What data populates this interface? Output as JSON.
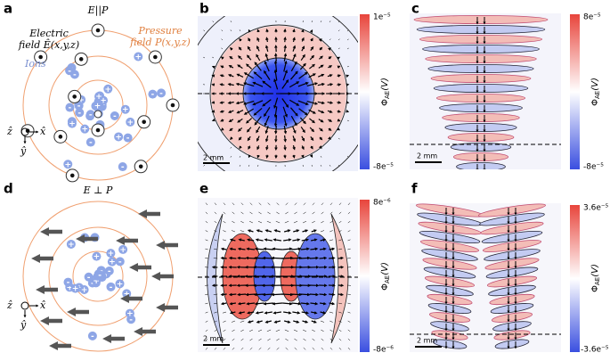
{
  "panels": {
    "a": {
      "label": "a",
      "title": "E||P",
      "electric": [
        "Electric",
        "field Ê(x,y,z)"
      ],
      "pressure": [
        "Pressure",
        "field P(x,y,z)"
      ],
      "ions": "Ions",
      "axes": [
        "ẑ",
        "x̂",
        "ŷ"
      ]
    },
    "b": {
      "label": "b",
      "cbar_top": "1e⁻⁵",
      "cbar_bottom": "-8e⁻⁵",
      "scale": "2 mm"
    },
    "c": {
      "label": "c",
      "cbar_top": "8e⁻⁵",
      "cbar_bottom": "-8e⁻⁵",
      "scale": "2 mm"
    },
    "d": {
      "label": "d",
      "title": "E ⊥ P",
      "axes": [
        "ẑ",
        "x̂",
        "ŷ"
      ]
    },
    "e": {
      "label": "e",
      "cbar_top": "8e⁻⁶",
      "cbar_bottom": "-8e⁻⁶",
      "scale": "2 mm"
    },
    "f": {
      "label": "f",
      "cbar_top": "3.6e⁻⁵",
      "cbar_bottom": "-3.6e⁻⁵",
      "scale": "2 mm"
    }
  },
  "colorbar_label": {
    "symbol": "Φ",
    "sub": "AE",
    "unit": "(V)"
  },
  "ion_signs": [
    "+",
    "-"
  ]
}
